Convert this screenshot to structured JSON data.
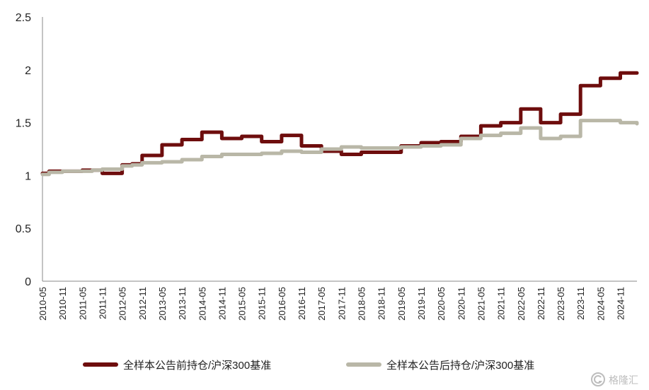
{
  "chart_data": {
    "type": "line",
    "title": "",
    "xlabel": "",
    "ylabel": "",
    "ylim": [
      0,
      2.5
    ],
    "yticks": [
      "0",
      "0.5",
      "1",
      "1.5",
      "2",
      "2.5"
    ],
    "xticks": [
      "2010-05",
      "2010-11",
      "2011-05",
      "2011-11",
      "2012-05",
      "2012-11",
      "2013-05",
      "2013-11",
      "2014-05",
      "2014-11",
      "2015-05",
      "2015-11",
      "2016-05",
      "2016-11",
      "2017-05",
      "2017-11",
      "2018-05",
      "2018-11",
      "2019-05",
      "2019-11",
      "2020-05",
      "2020-11",
      "2021-05",
      "2021-11",
      "2022-05",
      "2022-11",
      "2023-05",
      "2023-11",
      "2024-05",
      "2024-11"
    ],
    "grid": false,
    "legend_position": "bottom",
    "series": [
      {
        "name": "全样本公告前持仓/沪深300基准",
        "color": "#6e0d0d",
        "x": [
          "2010-05",
          "2010-07",
          "2010-11",
          "2011-02",
          "2011-05",
          "2011-08",
          "2011-11",
          "2012-01",
          "2012-05",
          "2012-08",
          "2012-11",
          "2013-02",
          "2013-05",
          "2013-08",
          "2013-11",
          "2014-02",
          "2014-05",
          "2014-08",
          "2014-11",
          "2015-02",
          "2015-05",
          "2015-08",
          "2015-11",
          "2016-02",
          "2016-05",
          "2016-08",
          "2016-11",
          "2017-02",
          "2017-05",
          "2017-08",
          "2017-11",
          "2018-02",
          "2018-05",
          "2018-08",
          "2018-11",
          "2019-02",
          "2019-05",
          "2019-08",
          "2019-11",
          "2020-02",
          "2020-05",
          "2020-08",
          "2020-11",
          "2021-02",
          "2021-05",
          "2021-08",
          "2021-11",
          "2022-02",
          "2022-05",
          "2022-08",
          "2022-11",
          "2023-02",
          "2023-05",
          "2023-08",
          "2023-11",
          "2024-02",
          "2024-05",
          "2024-08",
          "2024-11",
          "2025-02",
          "2025-04"
        ],
        "y": [
          1.02,
          1.04,
          1.04,
          1.04,
          1.05,
          1.05,
          1.02,
          1.02,
          1.1,
          1.11,
          1.19,
          1.19,
          1.29,
          1.29,
          1.34,
          1.34,
          1.41,
          1.41,
          1.35,
          1.35,
          1.37,
          1.37,
          1.32,
          1.32,
          1.38,
          1.38,
          1.28,
          1.28,
          1.23,
          1.23,
          1.2,
          1.2,
          1.22,
          1.22,
          1.22,
          1.22,
          1.28,
          1.28,
          1.31,
          1.31,
          1.32,
          1.32,
          1.37,
          1.37,
          1.47,
          1.47,
          1.5,
          1.5,
          1.63,
          1.63,
          1.5,
          1.5,
          1.58,
          1.58,
          1.85,
          1.85,
          1.92,
          1.92,
          1.97,
          1.97,
          1.97
        ]
      },
      {
        "name": "全样本公告后持仓/沪深300基准",
        "color": "#b9b7a7",
        "x": [
          "2010-05",
          "2010-07",
          "2010-11",
          "2011-02",
          "2011-05",
          "2011-08",
          "2011-11",
          "2012-01",
          "2012-05",
          "2012-08",
          "2012-11",
          "2013-02",
          "2013-05",
          "2013-08",
          "2013-11",
          "2014-02",
          "2014-05",
          "2014-08",
          "2014-11",
          "2015-02",
          "2015-05",
          "2015-08",
          "2015-11",
          "2016-02",
          "2016-05",
          "2016-08",
          "2016-11",
          "2017-02",
          "2017-05",
          "2017-08",
          "2017-11",
          "2018-02",
          "2018-05",
          "2018-08",
          "2018-11",
          "2019-02",
          "2019-05",
          "2019-08",
          "2019-11",
          "2020-02",
          "2020-05",
          "2020-08",
          "2020-11",
          "2021-02",
          "2021-05",
          "2021-08",
          "2021-11",
          "2022-02",
          "2022-05",
          "2022-08",
          "2022-11",
          "2023-02",
          "2023-05",
          "2023-08",
          "2023-11",
          "2024-02",
          "2024-05",
          "2024-08",
          "2024-11",
          "2025-02",
          "2025-04"
        ],
        "y": [
          1.01,
          1.03,
          1.04,
          1.04,
          1.04,
          1.05,
          1.06,
          1.06,
          1.09,
          1.1,
          1.12,
          1.12,
          1.13,
          1.13,
          1.15,
          1.15,
          1.18,
          1.18,
          1.2,
          1.2,
          1.2,
          1.2,
          1.21,
          1.21,
          1.23,
          1.23,
          1.22,
          1.22,
          1.25,
          1.25,
          1.27,
          1.27,
          1.26,
          1.26,
          1.26,
          1.26,
          1.27,
          1.27,
          1.28,
          1.28,
          1.29,
          1.29,
          1.35,
          1.35,
          1.38,
          1.38,
          1.4,
          1.4,
          1.45,
          1.45,
          1.35,
          1.35,
          1.37,
          1.37,
          1.52,
          1.52,
          1.52,
          1.52,
          1.5,
          1.5,
          1.49
        ]
      }
    ]
  },
  "watermark": {
    "icon": "gelonghui-logo-icon",
    "text": "格隆汇"
  }
}
